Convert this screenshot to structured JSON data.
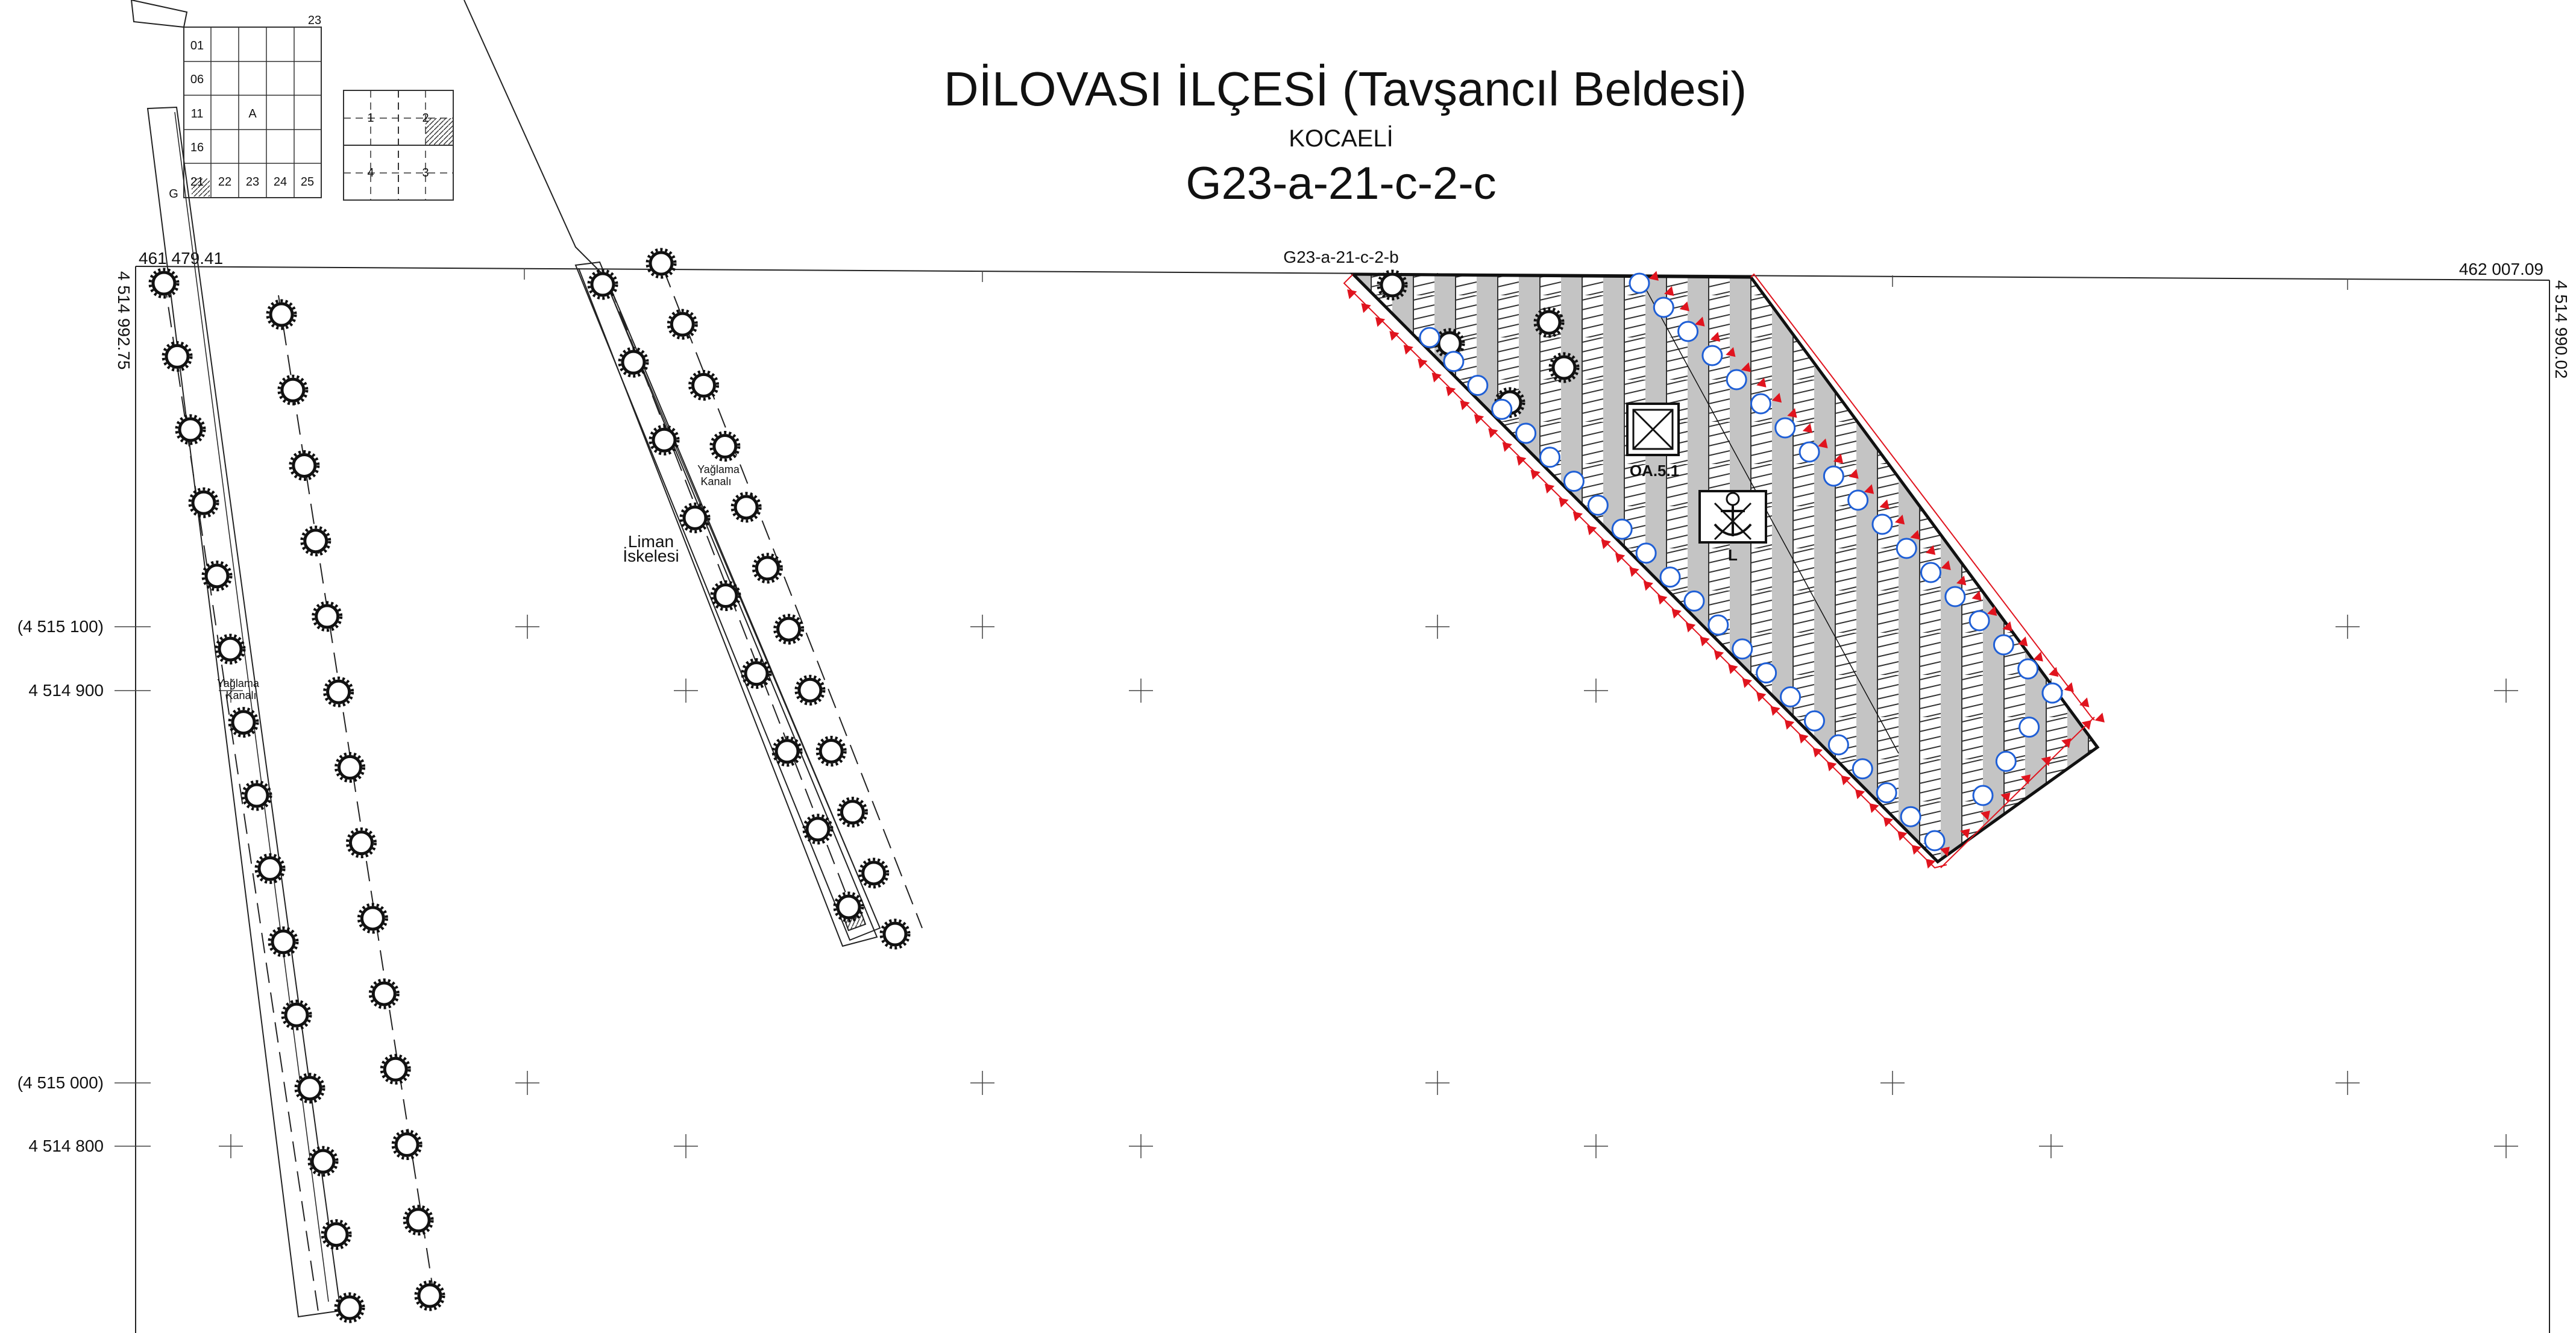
{
  "title": {
    "main": "DİLOVASI İLÇESİ (Tavşancıl Beldesi)",
    "province": "KOCAELİ",
    "sheet": "G23-a-21-c-2-c"
  },
  "adjacent_sheet": "G23-a-21-c-2-b",
  "index_map": {
    "top_label": "23",
    "cells": [
      "01",
      "06",
      "11",
      "16",
      "21",
      "22",
      "23",
      "24",
      "25"
    ],
    "letter": "A",
    "g_label": "G"
  },
  "sub_index": {
    "quads": [
      "1",
      "2",
      "3",
      "4"
    ]
  },
  "coordinates": {
    "top_left_x": "461 479.41",
    "top_right_x": "462 007.09",
    "left_y": "4 514 992.75",
    "right_y": "4 514 990.02",
    "y1_paren": "(4 515 100)",
    "y1": "4 514 900",
    "y2_paren": "(4 515 000)",
    "y2": "4 514 800"
  },
  "labels": {
    "liman": "Liman İskelesi",
    "liman_line1": "Liman",
    "liman_line2": "İskelesi",
    "yaglama_line1": "Yağlama",
    "yaglama_line2": "Kanalı",
    "area_code": "OA.5.1",
    "anchor_letter": "L"
  },
  "colors": {
    "line": "#222222",
    "boundary_red": "#e0141e",
    "circle_blue": "#1f5fd6",
    "hatch_fill": "#c8c8c8"
  },
  "icons": [
    "bollard-icon",
    "anchor-icon",
    "box-cross-icon",
    "grid-cross-icon",
    "red-arrow-icon",
    "blue-circle-icon"
  ]
}
